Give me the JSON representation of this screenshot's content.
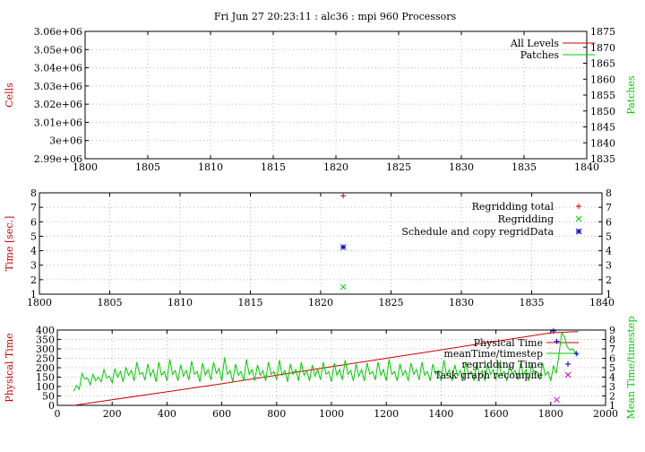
{
  "title": "Fri Jun 27 20:23:11 : alc36 : mpi 960 Processors",
  "colors": {
    "red": "#cc0000",
    "green": "#00cc00",
    "blue": "#0000cc",
    "magenta": "#cc00cc"
  },
  "chart_data": [
    {
      "type": "line",
      "ylabel": "Cells",
      "y2label": "Patches",
      "xlim": [
        1800,
        1840
      ],
      "ylim": [
        2990000,
        3060000
      ],
      "y2lim": [
        1835,
        1875
      ],
      "xticks": [
        1800,
        1805,
        1810,
        1815,
        1820,
        1825,
        1830,
        1835,
        1840
      ],
      "xtick_labels": [
        "1800",
        "1805",
        "1810",
        "1815",
        "1820",
        "1825",
        "1830",
        "1835",
        "1840"
      ],
      "yticks": [
        2990000,
        3000000,
        3010000,
        3020000,
        3030000,
        3040000,
        3050000,
        3060000
      ],
      "ytick_labels": [
        "2.99e+06",
        "3e+06",
        "3.01e+06",
        "3.02e+06",
        "3.03e+06",
        "3.04e+06",
        "3.05e+06",
        "3.06e+06"
      ],
      "y2ticks": [
        1835,
        1840,
        1845,
        1850,
        1855,
        1860,
        1865,
        1870,
        1875
      ],
      "y2tick_labels": [
        "1835",
        "1840",
        "1845",
        "1850",
        "1855",
        "1860",
        "1865",
        "1870",
        "1875"
      ],
      "grid": true,
      "legend_position": "top-right",
      "series": [
        {
          "name": "All Levels",
          "color": "#cc0000",
          "style": "line",
          "points": []
        },
        {
          "name": "Patches",
          "color": "#00cc00",
          "style": "line",
          "axis": "y2",
          "points": []
        }
      ]
    },
    {
      "type": "scatter",
      "ylabel": "Time [sec.]",
      "xlim": [
        1800,
        1840
      ],
      "ylim": [
        1,
        8
      ],
      "y2lim": [
        1,
        8
      ],
      "xticks": [
        1800,
        1805,
        1810,
        1815,
        1820,
        1825,
        1830,
        1835,
        1840
      ],
      "xtick_labels": [
        "1800",
        "1805",
        "1810",
        "1815",
        "1820",
        "1825",
        "1830",
        "1835",
        "1840"
      ],
      "yticks": [
        1,
        2,
        3,
        4,
        5,
        6,
        7,
        8
      ],
      "ytick_labels": [
        "1",
        "2",
        "3",
        "4",
        "5",
        "6",
        "7",
        "8"
      ],
      "y2ticks": [
        1,
        2,
        3,
        4,
        5,
        6,
        7,
        8
      ],
      "y2tick_labels": [
        "1",
        "2",
        "3",
        "4",
        "5",
        "6",
        "7",
        "8"
      ],
      "grid": true,
      "legend_position": "top-right",
      "series": [
        {
          "name": "Regridding total",
          "color": "#cc0000",
          "marker": "plus",
          "points": [
            [
              1821.6,
              7.8
            ]
          ]
        },
        {
          "name": "Regridding",
          "color": "#00cc00",
          "marker": "cross",
          "points": [
            [
              1821.6,
              1.5
            ]
          ]
        },
        {
          "name": "Schedule and copy regridData",
          "color": "#0000cc",
          "marker": "star",
          "points": [
            [
              1821.6,
              4.25
            ]
          ]
        }
      ]
    },
    {
      "type": "line",
      "ylabel": "Physical Time",
      "y2label": "Mean Time/timestep",
      "xlim": [
        0,
        2000
      ],
      "ylim": [
        0,
        400
      ],
      "y2lim": [
        1,
        9
      ],
      "xticks": [
        0,
        200,
        400,
        600,
        800,
        1000,
        1200,
        1400,
        1600,
        1800,
        2000
      ],
      "xtick_labels": [
        "0",
        "200",
        "400",
        "600",
        "800",
        "1000",
        "1200",
        "1400",
        "1600",
        "1800",
        "2000"
      ],
      "yticks": [
        0,
        50,
        100,
        150,
        200,
        250,
        300,
        350,
        400
      ],
      "ytick_labels": [
        "0",
        "50",
        "100",
        "150",
        "200",
        "250",
        "300",
        "350",
        "400"
      ],
      "y2ticks": [
        1,
        2,
        3,
        4,
        5,
        6,
        7,
        8,
        9
      ],
      "y2tick_labels": [
        "1",
        "2",
        "3",
        "4",
        "5",
        "6",
        "7",
        "8",
        "9"
      ],
      "grid": true,
      "legend_position": "top-right",
      "series": [
        {
          "name": "Physical Time",
          "color": "#cc0000",
          "style": "line",
          "points": [
            [
              60,
              0
            ],
            [
              200,
              30
            ],
            [
              400,
              72
            ],
            [
              600,
              115
            ],
            [
              800,
              160
            ],
            [
              1000,
              205
            ],
            [
              1200,
              250
            ],
            [
              1400,
              295
            ],
            [
              1600,
              340
            ],
            [
              1800,
              385
            ],
            [
              1900,
              392
            ]
          ]
        },
        {
          "name": "meanTime/timestep",
          "color": "#00cc00",
          "style": "line",
          "axis": "y2",
          "points": [
            [
              60,
              2.5
            ],
            [
              70,
              3.1
            ],
            [
              80,
              2.7
            ],
            [
              90,
              4.4
            ],
            [
              100,
              3.8
            ],
            [
              110,
              3.9
            ],
            [
              120,
              3.2
            ],
            [
              130,
              4.3
            ],
            [
              140,
              3.6
            ],
            [
              150,
              4.0
            ],
            [
              160,
              3.5
            ],
            [
              170,
              4.8
            ],
            [
              180,
              3.9
            ],
            [
              190,
              4.1
            ],
            [
              200,
              3.4
            ],
            [
              210,
              4.9
            ],
            [
              220,
              4.0
            ],
            [
              230,
              4.6
            ],
            [
              240,
              3.5
            ],
            [
              250,
              5.0
            ],
            [
              260,
              4.2
            ],
            [
              270,
              4.7
            ],
            [
              280,
              3.6
            ],
            [
              290,
              5.6
            ],
            [
              300,
              4.3
            ],
            [
              310,
              4.5
            ],
            [
              320,
              3.7
            ],
            [
              330,
              5.4
            ],
            [
              340,
              4.1
            ],
            [
              350,
              4.8
            ],
            [
              360,
              3.5
            ],
            [
              370,
              5.6
            ],
            [
              380,
              4.2
            ],
            [
              390,
              4.6
            ],
            [
              400,
              3.6
            ],
            [
              410,
              5.9
            ],
            [
              420,
              4.3
            ],
            [
              430,
              4.7
            ],
            [
              440,
              3.6
            ],
            [
              450,
              5.3
            ],
            [
              460,
              4.1
            ],
            [
              470,
              4.7
            ],
            [
              480,
              3.7
            ],
            [
              490,
              5.7
            ],
            [
              500,
              4.3
            ],
            [
              510,
              4.6
            ],
            [
              520,
              3.5
            ],
            [
              530,
              5.5
            ],
            [
              540,
              4.2
            ],
            [
              550,
              4.8
            ],
            [
              560,
              3.7
            ],
            [
              570,
              5.6
            ],
            [
              580,
              4.4
            ],
            [
              590,
              4.9
            ],
            [
              600,
              3.6
            ],
            [
              610,
              6.1
            ],
            [
              620,
              4.3
            ],
            [
              630,
              4.7
            ],
            [
              640,
              3.5
            ],
            [
              650,
              5.4
            ],
            [
              660,
              4.2
            ],
            [
              670,
              4.6
            ],
            [
              680,
              3.6
            ],
            [
              690,
              5.9
            ],
            [
              700,
              4.3
            ],
            [
              710,
              4.8
            ],
            [
              720,
              3.6
            ],
            [
              730,
              5.3
            ],
            [
              740,
              4.2
            ],
            [
              750,
              4.7
            ],
            [
              760,
              3.6
            ],
            [
              770,
              5.6
            ],
            [
              780,
              4.3
            ],
            [
              790,
              4.6
            ],
            [
              800,
              3.7
            ],
            [
              810,
              5.8
            ],
            [
              820,
              4.2
            ],
            [
              830,
              4.7
            ],
            [
              840,
              3.5
            ],
            [
              850,
              5.4
            ],
            [
              860,
              4.3
            ],
            [
              870,
              4.8
            ],
            [
              880,
              3.6
            ],
            [
              890,
              5.6
            ],
            [
              900,
              4.2
            ],
            [
              910,
              4.7
            ],
            [
              920,
              3.6
            ],
            [
              930,
              5.3
            ],
            [
              940,
              4.1
            ],
            [
              950,
              4.8
            ],
            [
              960,
              3.7
            ],
            [
              970,
              5.6
            ],
            [
              980,
              4.3
            ],
            [
              990,
              4.6
            ],
            [
              1000,
              3.5
            ],
            [
              1010,
              5.5
            ],
            [
              1020,
              4.2
            ],
            [
              1030,
              4.8
            ],
            [
              1040,
              3.7
            ],
            [
              1050,
              5.8
            ],
            [
              1060,
              4.3
            ],
            [
              1070,
              4.7
            ],
            [
              1080,
              3.6
            ],
            [
              1090,
              5.4
            ],
            [
              1100,
              4.1
            ],
            [
              1110,
              4.8
            ],
            [
              1120,
              3.6
            ],
            [
              1130,
              5.5
            ],
            [
              1140,
              4.3
            ],
            [
              1150,
              4.6
            ],
            [
              1160,
              3.7
            ],
            [
              1170,
              5.6
            ],
            [
              1180,
              4.2
            ],
            [
              1190,
              4.8
            ],
            [
              1200,
              3.6
            ],
            [
              1210,
              5.9
            ],
            [
              1220,
              4.3
            ],
            [
              1230,
              4.6
            ],
            [
              1240,
              3.6
            ],
            [
              1250,
              5.4
            ],
            [
              1260,
              4.2
            ],
            [
              1270,
              4.7
            ],
            [
              1280,
              3.6
            ],
            [
              1290,
              5.5
            ],
            [
              1300,
              4.3
            ],
            [
              1310,
              4.8
            ],
            [
              1320,
              3.7
            ],
            [
              1330,
              5.6
            ],
            [
              1340,
              4.2
            ],
            [
              1350,
              4.6
            ],
            [
              1360,
              3.6
            ],
            [
              1370,
              5.4
            ],
            [
              1380,
              4.3
            ],
            [
              1390,
              4.7
            ],
            [
              1400,
              3.6
            ],
            [
              1410,
              5.8
            ],
            [
              1420,
              4.2
            ],
            [
              1430,
              4.8
            ],
            [
              1440,
              3.6
            ],
            [
              1450,
              5.3
            ],
            [
              1460,
              4.1
            ],
            [
              1470,
              4.7
            ],
            [
              1480,
              3.7
            ],
            [
              1490,
              5.6
            ],
            [
              1500,
              4.3
            ],
            [
              1510,
              4.6
            ],
            [
              1520,
              3.6
            ],
            [
              1530,
              5.5
            ],
            [
              1540,
              4.2
            ],
            [
              1550,
              4.7
            ],
            [
              1560,
              3.6
            ],
            [
              1570,
              5.4
            ],
            [
              1580,
              4.3
            ],
            [
              1590,
              4.8
            ],
            [
              1600,
              3.7
            ],
            [
              1610,
              5.6
            ],
            [
              1620,
              4.2
            ],
            [
              1630,
              4.6
            ],
            [
              1640,
              3.6
            ],
            [
              1650,
              5.3
            ],
            [
              1660,
              4.3
            ],
            [
              1670,
              4.7
            ],
            [
              1680,
              3.7
            ],
            [
              1690,
              5.5
            ],
            [
              1700,
              4.2
            ],
            [
              1710,
              4.8
            ],
            [
              1720,
              3.6
            ],
            [
              1730,
              5.4
            ],
            [
              1740,
              4.3
            ],
            [
              1750,
              4.6
            ],
            [
              1760,
              3.7
            ],
            [
              1770,
              5.5
            ],
            [
              1780,
              4.2
            ],
            [
              1790,
              4.6
            ],
            [
              1800,
              3.6
            ],
            [
              1810,
              5.2
            ],
            [
              1820,
              4.4
            ],
            [
              1830,
              6.4
            ],
            [
              1840,
              8.7
            ],
            [
              1850,
              8.3
            ],
            [
              1860,
              7.2
            ],
            [
              1870,
              6.9
            ],
            [
              1880,
              7.0
            ],
            [
              1890,
              6.6
            ],
            [
              1900,
              6.3
            ]
          ]
        },
        {
          "name": "regridding Time",
          "color": "#0000cc",
          "marker": "plus",
          "axis": "y2",
          "points": [
            [
              1810,
              8.9
            ],
            [
              1822,
              7.8
            ],
            [
              1893,
              6.5
            ]
          ]
        },
        {
          "name": "Task graph recompile",
          "color": "#cc00cc",
          "marker": "cross",
          "axis": "y2",
          "points": [
            [
              1822,
              1.6
            ]
          ]
        }
      ]
    }
  ]
}
